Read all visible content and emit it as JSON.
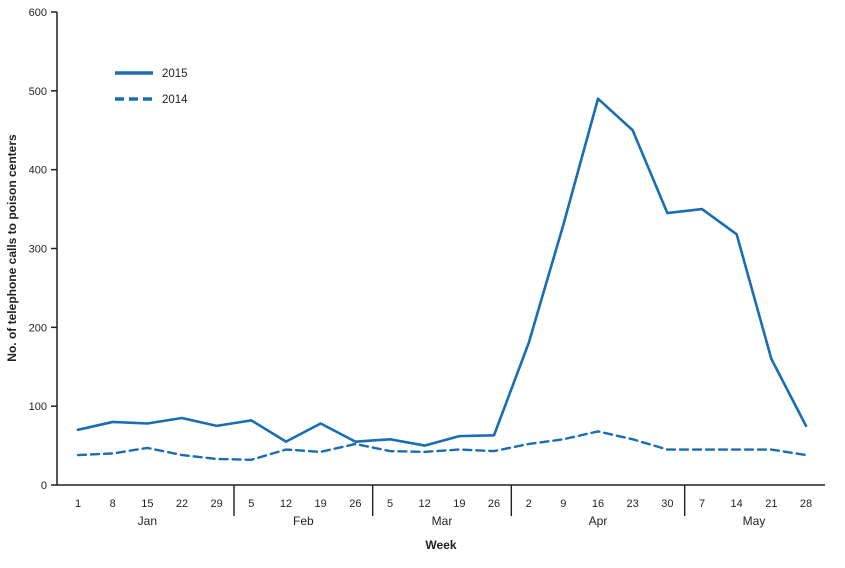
{
  "figure": {
    "background": "#ffffff"
  },
  "chart_data": {
    "type": "line",
    "title": "",
    "xlabel": "Week",
    "ylabel": "No. of telephone calls to poison centers",
    "ylim": [
      0,
      600
    ],
    "ytick_interval": 100,
    "grid": "off",
    "accent_color": "#1a6db3",
    "axis_color": "#231f20",
    "legend": {
      "position": "top-left"
    },
    "x_groups": [
      {
        "label": "Jan",
        "ticks": [
          "1",
          "8",
          "15",
          "22",
          "29"
        ]
      },
      {
        "label": "Feb",
        "ticks": [
          "5",
          "12",
          "19",
          "26"
        ]
      },
      {
        "label": "Mar",
        "ticks": [
          "5",
          "12",
          "19",
          "26"
        ]
      },
      {
        "label": "Apr",
        "ticks": [
          "2",
          "9",
          "16",
          "23",
          "30"
        ]
      },
      {
        "label": "May",
        "ticks": [
          "7",
          "14",
          "21",
          "28"
        ]
      }
    ],
    "series": [
      {
        "name": "2015",
        "line_style": "solid",
        "values": [
          70,
          80,
          78,
          85,
          75,
          82,
          55,
          78,
          55,
          58,
          50,
          62,
          63,
          180,
          330,
          490,
          450,
          345,
          350,
          318,
          160,
          75
        ]
      },
      {
        "name": "2014",
        "line_style": "dashed",
        "values": [
          38,
          40,
          47,
          38,
          33,
          32,
          45,
          42,
          52,
          43,
          42,
          45,
          43,
          52,
          58,
          68,
          58,
          45,
          45,
          45,
          45,
          38
        ]
      }
    ]
  }
}
